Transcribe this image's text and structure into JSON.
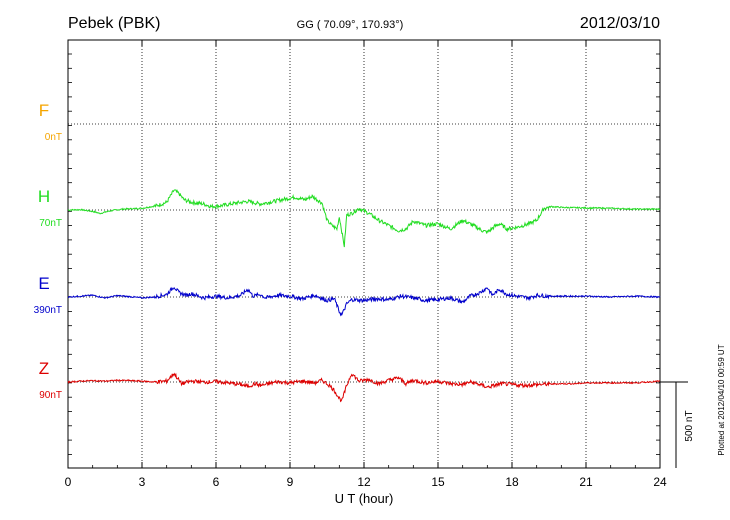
{
  "header": {
    "station": "Pebek (PBK)",
    "coords": "GG ( 70.09°, 170.93°)",
    "date": "2012/03/10"
  },
  "side_note": "Plotted at 2012/04/10 00:59 UT",
  "scale_label": "500 nT",
  "colors": {
    "F": "#f5a500",
    "H": "#22dd22",
    "E": "#0000cc",
    "Z": "#dd0000",
    "axis": "#000000",
    "grid": "#000000"
  },
  "chart_data": {
    "type": "line",
    "title": "Pebek (PBK)",
    "xlabel": "U T (hour)",
    "ylabel": "",
    "xlim": [
      0,
      24
    ],
    "x_ticks": [
      0,
      3,
      6,
      9,
      12,
      15,
      18,
      21,
      24
    ],
    "x_tick_labels": [
      "0",
      "3",
      "6",
      "9",
      "12",
      "15",
      "18",
      "21",
      "24"
    ],
    "grid": true,
    "scale_bar_nT": 500,
    "series": [
      {
        "name": "F",
        "offset_label": "0nT",
        "values": []
      },
      {
        "name": "H",
        "offset_label": "70nT",
        "x": [
          0,
          0.5,
          1.0,
          1.3,
          1.7,
          2.2,
          3.0,
          3.6,
          4.0,
          4.3,
          4.5,
          4.7,
          5.0,
          5.5,
          5.8,
          6.2,
          6.8,
          7.3,
          7.8,
          8.5,
          9.2,
          9.6,
          9.9,
          10.3,
          10.5,
          10.7,
          10.9,
          11.0,
          11.2,
          11.3,
          11.5,
          11.8,
          12.2,
          12.6,
          13.0,
          13.4,
          13.7,
          14.0,
          14.5,
          15.0,
          15.5,
          16.0,
          16.5,
          16.8,
          17.0,
          17.3,
          17.5,
          17.8,
          18.2,
          18.7,
          19.0,
          19.3,
          19.6,
          20.0,
          21.0,
          22.0,
          23.0,
          24.0
        ],
        "values": [
          0,
          2,
          -8,
          -20,
          -5,
          5,
          10,
          25,
          45,
          115,
          95,
          60,
          45,
          35,
          20,
          25,
          40,
          50,
          35,
          55,
          75,
          60,
          80,
          40,
          -60,
          -90,
          -110,
          -40,
          -210,
          -30,
          -20,
          10,
          -20,
          -60,
          -90,
          -120,
          -110,
          -65,
          -90,
          -80,
          -110,
          -60,
          -95,
          -120,
          -130,
          -95,
          -80,
          -110,
          -100,
          -80,
          -60,
          10,
          20,
          15,
          12,
          10,
          5,
          5
        ]
      },
      {
        "name": "E",
        "offset_label": "390nT",
        "x": [
          0,
          0.5,
          1.0,
          1.5,
          2.0,
          2.5,
          3.0,
          3.5,
          4.0,
          4.3,
          4.5,
          4.8,
          5.0,
          5.5,
          6.0,
          6.5,
          7.0,
          7.3,
          7.5,
          7.8,
          8.0,
          8.5,
          9.0,
          9.5,
          10.0,
          10.5,
          10.8,
          11.0,
          11.1,
          11.3,
          11.5,
          12.0,
          12.5,
          13.0,
          13.5,
          14.0,
          14.5,
          15.0,
          15.5,
          16.0,
          16.3,
          16.7,
          17.0,
          17.2,
          17.5,
          17.8,
          18.2,
          18.7,
          19.0,
          19.5,
          20.0,
          21.0,
          22.0,
          23.0,
          24.0
        ],
        "values": [
          0,
          5,
          10,
          -5,
          8,
          2,
          -5,
          0,
          15,
          60,
          25,
          10,
          20,
          -5,
          5,
          -5,
          10,
          45,
          5,
          15,
          -5,
          10,
          5,
          -10,
          10,
          -20,
          -10,
          -85,
          -105,
          -40,
          -15,
          -20,
          -10,
          -15,
          5,
          -5,
          -20,
          -15,
          -5,
          -30,
          5,
          25,
          55,
          10,
          45,
          15,
          5,
          -5,
          10,
          5,
          5,
          5,
          0,
          5,
          0
        ]
      },
      {
        "name": "Z",
        "offset_label": "90nT",
        "x": [
          0,
          0.5,
          1.0,
          1.5,
          2.0,
          2.5,
          3.0,
          3.5,
          4.0,
          4.3,
          4.6,
          5.0,
          5.5,
          6.0,
          6.5,
          7.0,
          7.3,
          7.6,
          7.8,
          8.0,
          8.5,
          9.0,
          9.5,
          10.0,
          10.3,
          10.6,
          10.8,
          11.0,
          11.1,
          11.3,
          11.5,
          11.8,
          12.2,
          12.6,
          13.0,
          13.4,
          13.7,
          14.0,
          14.5,
          15.0,
          15.5,
          16.0,
          16.3,
          16.7,
          17.0,
          17.3,
          17.6,
          18.0,
          18.5,
          19.0,
          19.5,
          20.0,
          20.5,
          21.0,
          22.0,
          23.0,
          24.0
        ],
        "values": [
          0,
          5,
          8,
          5,
          10,
          8,
          5,
          0,
          5,
          50,
          -10,
          5,
          0,
          2,
          -5,
          -15,
          -25,
          -10,
          -20,
          -15,
          2,
          -5,
          5,
          -5,
          10,
          -20,
          -50,
          -95,
          -110,
          -20,
          50,
          5,
          15,
          -10,
          10,
          25,
          -10,
          10,
          -5,
          5,
          -10,
          -15,
          0,
          -15,
          -30,
          -20,
          -10,
          -15,
          -20,
          -15,
          -12,
          -10,
          -10,
          -5,
          -5,
          -5,
          5
        ]
      }
    ]
  }
}
